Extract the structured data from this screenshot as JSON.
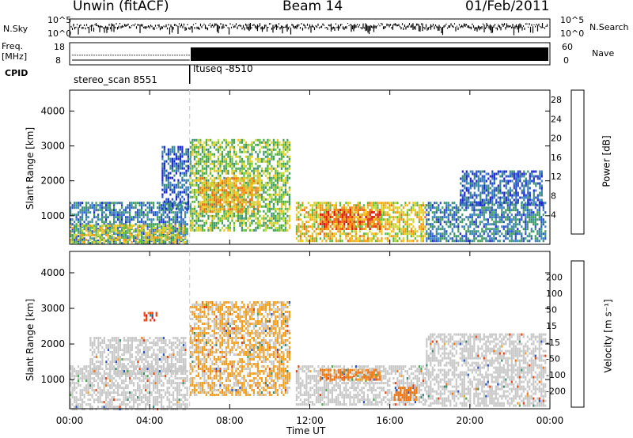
{
  "header": {
    "station": "Unwin (fitACF)",
    "beam": "Beam 14",
    "date": "01/Feb/2011"
  },
  "top_panels": {
    "nsky_label": "N.Sky",
    "nsky_ticks": [
      "10^5",
      "10^0"
    ],
    "nsearch_label": "N.Search",
    "freq_label_1": "Freq.",
    "freq_label_2": "[MHz]",
    "freq_ticks": [
      "18",
      "8"
    ],
    "nave_label": "Nave",
    "nave_ticks": [
      "60",
      "0"
    ],
    "cpid_label": "CPID",
    "cpid_1": "stereo_scan 8551",
    "cpid_2": "ltuseq -8510"
  },
  "chart_data": [
    {
      "type": "heatmap",
      "name": "power",
      "xlabel": "Time UT",
      "ylabel": "Slant Range [km]",
      "x_ticks": [
        "00:00",
        "04:00",
        "08:00",
        "12:00",
        "16:00",
        "20:00",
        "00:00"
      ],
      "x_range_hours": [
        0,
        24
      ],
      "y_ticks": [
        1000,
        2000,
        3000,
        4000
      ],
      "ylim": [
        180,
        4600
      ],
      "colorbar": {
        "label": "Power [dB]",
        "ticks": [
          4,
          8,
          12,
          16,
          20,
          24,
          28
        ],
        "range": [
          0,
          30
        ],
        "colors": [
          "#1e28d2",
          "#2a52c8",
          "#3a82c0",
          "#3d8f7a",
          "#3fa058",
          "#5dbb3a",
          "#c9d633",
          "#f3c21c",
          "#f29a12",
          "#ef6d10",
          "#e63a12",
          "#e01414"
        ]
      },
      "regions": [
        {
          "t0": 0.0,
          "t1": 5.9,
          "r0": 200,
          "r1": 1400,
          "level": 7
        },
        {
          "t0": 0.0,
          "t1": 5.8,
          "r0": 250,
          "r1": 750,
          "level": 17
        },
        {
          "t0": 4.6,
          "t1": 6.0,
          "r0": 1200,
          "r1": 3000,
          "level": 5
        },
        {
          "t0": 6.0,
          "t1": 11.0,
          "r0": 600,
          "r1": 3200,
          "level": 14
        },
        {
          "t0": 6.5,
          "t1": 9.5,
          "r0": 1100,
          "r1": 2100,
          "level": 20
        },
        {
          "t0": 11.3,
          "t1": 17.8,
          "r0": 300,
          "r1": 1400,
          "level": 18
        },
        {
          "t0": 12.5,
          "t1": 15.5,
          "r0": 600,
          "r1": 1200,
          "level": 25
        },
        {
          "t0": 17.8,
          "t1": 23.8,
          "r0": 250,
          "r1": 1400,
          "level": 7
        },
        {
          "t0": 19.5,
          "t1": 23.6,
          "r0": 1300,
          "r1": 2300,
          "level": 5
        }
      ]
    },
    {
      "type": "heatmap",
      "name": "velocity",
      "xlabel": "Time UT",
      "ylabel": "Slant Range [km]",
      "x_ticks": [
        "00:00",
        "04:00",
        "08:00",
        "12:00",
        "16:00",
        "20:00",
        "00:00"
      ],
      "x_range_hours": [
        0,
        24
      ],
      "y_ticks": [
        1000,
        2000,
        3000,
        4000
      ],
      "ylim": [
        180,
        4600
      ],
      "colorbar": {
        "label": "Velocity [m s⁻¹]",
        "ticks": [
          200,
          100,
          50,
          15,
          -15,
          -50,
          -100,
          -200
        ],
        "colors": [
          "#1e28d2",
          "#2a55c0",
          "#3a8a6f",
          "#4aa84a",
          "#7fcf3f",
          "#c8c8c8",
          "#c8c8c8",
          "#f2c24a",
          "#f2a023",
          "#ef7510",
          "#e84412",
          "#e01414"
        ]
      },
      "regions": [
        {
          "t0": 0.0,
          "t1": 5.9,
          "r0": 200,
          "r1": 1400,
          "vel": 0
        },
        {
          "t0": 1.0,
          "t1": 5.8,
          "r0": 1200,
          "r1": 2200,
          "vel": 0
        },
        {
          "t0": 6.0,
          "t1": 11.0,
          "r0": 600,
          "r1": 3200,
          "vel": -20
        },
        {
          "t0": 11.3,
          "t1": 17.8,
          "r0": 300,
          "r1": 1400,
          "vel": 0
        },
        {
          "t0": 12.5,
          "t1": 15.5,
          "r0": 1000,
          "r1": 1300,
          "vel": -60
        },
        {
          "t0": 17.8,
          "t1": 23.8,
          "r0": 250,
          "r1": 2300,
          "vel": 0
        },
        {
          "t0": 16.2,
          "t1": 17.3,
          "r0": 450,
          "r1": 800,
          "vel": -80
        },
        {
          "t0": 3.7,
          "t1": 4.3,
          "r0": 2650,
          "r1": 2900,
          "vel": -200
        }
      ]
    }
  ],
  "time_axis_label": "Time UT"
}
